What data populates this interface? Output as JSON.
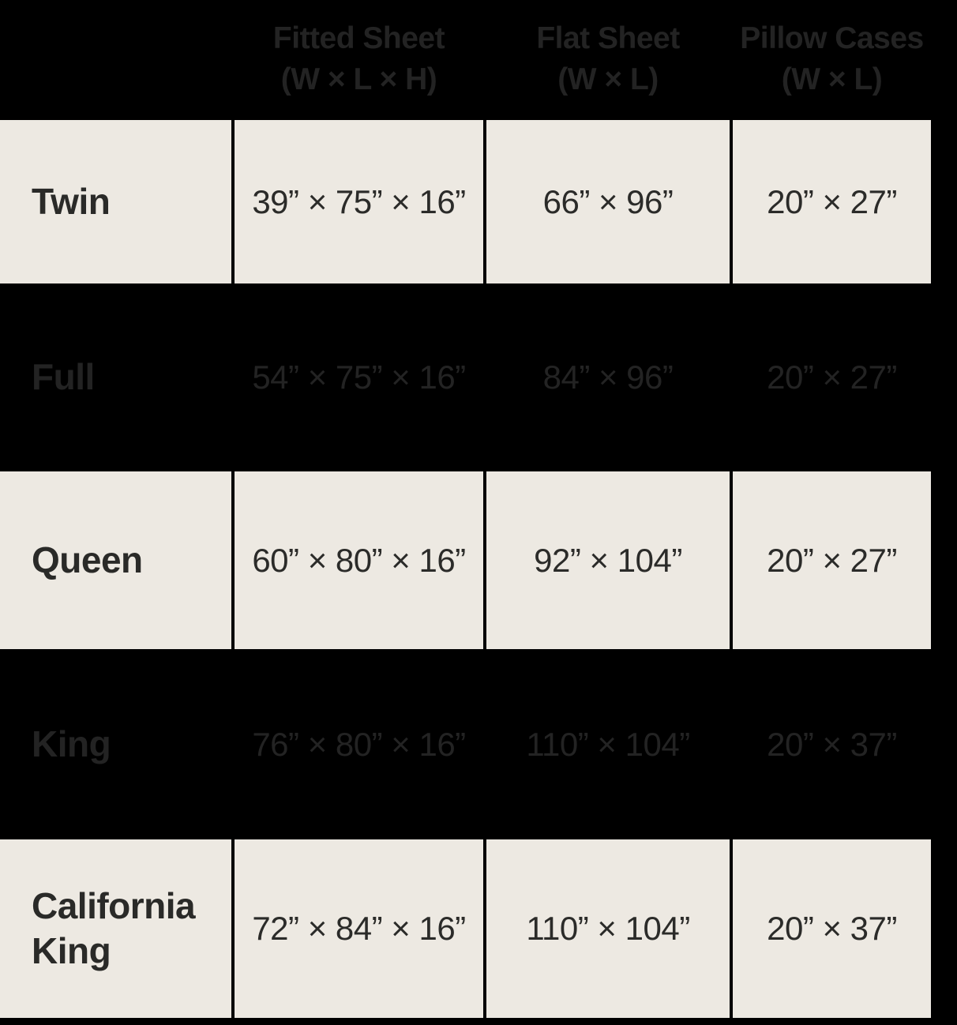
{
  "colors": {
    "page_background": "#000000",
    "cell_background": "#EDE9E2",
    "cell_text": "#2B2B29",
    "dark_row_text": "#232323"
  },
  "headers": [
    {
      "line1": "Fitted Sheet",
      "line2": "(W × L × H)"
    },
    {
      "line1": "Flat Sheet",
      "line2": "(W × L)"
    },
    {
      "line1": "Pillow Cases",
      "line2": "(W × L)"
    }
  ],
  "rows": [
    {
      "size": "Twin",
      "fitted": "39” × 75” × 16”",
      "flat": "66” × 96”",
      "pillow": "20” × 27”"
    },
    {
      "size": "Full",
      "fitted": "54” × 75” × 16”",
      "flat": "84” × 96”",
      "pillow": "20” × 27”"
    },
    {
      "size": "Queen",
      "fitted": "60” × 80” × 16”",
      "flat": "92” × 104”",
      "pillow": "20” × 27”"
    },
    {
      "size": "King",
      "fitted": "76” × 80” × 16”",
      "flat": "110” × 104”",
      "pillow": "20” × 37”"
    },
    {
      "size": "California King",
      "fitted": "72” × 84” × 16”",
      "flat": "110” × 104”",
      "pillow": "20” × 37”"
    }
  ],
  "chart_data": {
    "type": "table",
    "columns": [
      "",
      "Fitted Sheet (W × L × H)",
      "Flat Sheet (W × L)",
      "Pillow Cases (W × L)"
    ],
    "rows": [
      [
        "Twin",
        "39” × 75” × 16”",
        "66” × 96”",
        "20” × 27”"
      ],
      [
        "Full",
        "54” × 75” × 16”",
        "84” × 96”",
        "20” × 27”"
      ],
      [
        "Queen",
        "60” × 80” × 16”",
        "92” × 104”",
        "20” × 27”"
      ],
      [
        "King",
        "76” × 80” × 16”",
        "110” × 104”",
        "20” × 37”"
      ],
      [
        "California King",
        "72” × 84” × 16”",
        "110” × 104”",
        "20” × 37”"
      ]
    ],
    "layout_hints": {
      "alternating_rows": "odd rows on cream cells, even rows on black background",
      "grid": "black gutters between cream cells",
      "header_position": "top, centered over value columns"
    }
  }
}
